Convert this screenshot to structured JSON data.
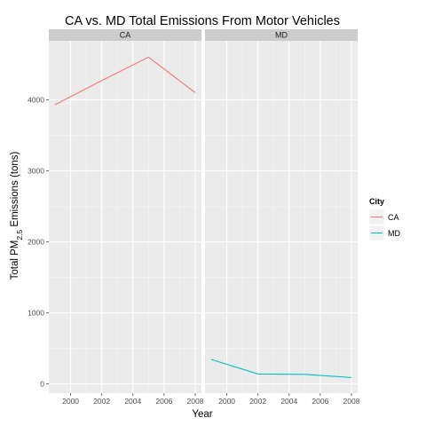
{
  "chart_data": {
    "type": "line",
    "title": "CA vs. MD Total Emissions From Motor Vehicles",
    "xlabel": "Year",
    "ylabel_prefix": "Total PM",
    "ylabel_sub": "2.5",
    "ylabel_suffix": " Emissions (tons)",
    "xlim": [
      1998.6,
      2008.4
    ],
    "ylim": [
      -130,
      4830
    ],
    "x_ticks": [
      2000,
      2002,
      2004,
      2006,
      2008
    ],
    "y_ticks": [
      0,
      1000,
      2000,
      3000,
      4000
    ],
    "grid": true,
    "legend": {
      "title": "City",
      "position": "right",
      "entries": [
        "CA",
        "MD"
      ]
    },
    "facets": [
      {
        "label": "CA",
        "series": [
          {
            "name": "CA",
            "color": "#F8766D",
            "x": [
              1999,
              2002,
              2005,
              2008
            ],
            "y": [
              3930,
              4270,
              4600,
              4100
            ]
          }
        ]
      },
      {
        "label": "MD",
        "series": [
          {
            "name": "MD",
            "color": "#00BFC4",
            "x": [
              1999,
              2002,
              2005,
              2008
            ],
            "y": [
              345,
              140,
              135,
              90
            ]
          }
        ]
      }
    ]
  }
}
